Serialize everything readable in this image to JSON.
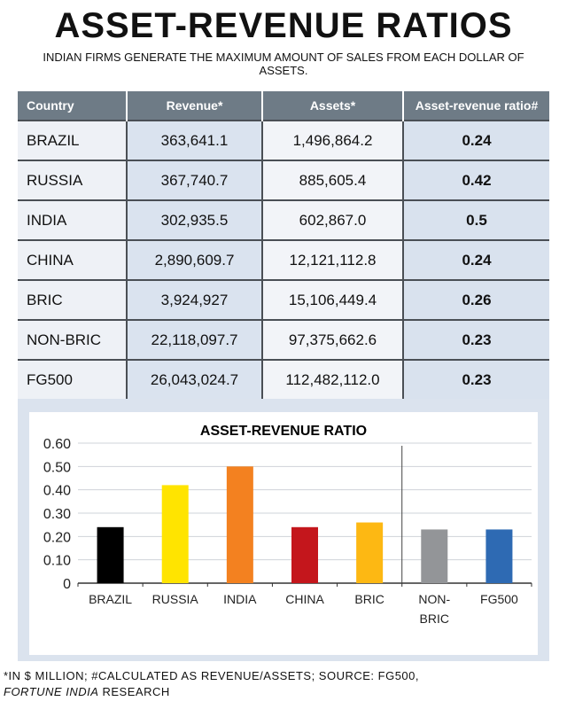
{
  "title": "ASSET-REVENUE RATIOS",
  "subtitle": "INDIAN FIRMS GENERATE THE MAXIMUM AMOUNT OF SALES FROM EACH DOLLAR OF ASSETS.",
  "table": {
    "headers": [
      "Country",
      "Revenue*",
      "Assets*",
      "Asset-revenue ratio#"
    ],
    "rows": [
      [
        "BRAZIL",
        "363,641.1",
        "1,496,864.2",
        "0.24"
      ],
      [
        "RUSSIA",
        "367,740.7",
        "885,605.4",
        "0.42"
      ],
      [
        "INDIA",
        "302,935.5",
        "602,867.0",
        "0.5"
      ],
      [
        "CHINA",
        "2,890,609.7",
        "12,121,112.8",
        "0.24"
      ],
      [
        "BRIC",
        "3,924,927",
        "15,106,449.4",
        "0.26"
      ],
      [
        "NON-BRIC",
        "22,118,097.7",
        "97,375,662.6",
        "0.23"
      ],
      [
        "FG500",
        "26,043,024.7",
        "112,482,112.0",
        "0.23"
      ]
    ]
  },
  "chart_data": {
    "type": "bar",
    "title": "ASSET-REVENUE RATIO",
    "categories": [
      "BRAZIL",
      "RUSSIA",
      "INDIA",
      "CHINA",
      "BRIC",
      "NON-BRIC",
      "FG500"
    ],
    "category_lines": [
      [
        "BRAZIL"
      ],
      [
        "RUSSIA"
      ],
      [
        "INDIA"
      ],
      [
        "CHINA"
      ],
      [
        "BRIC"
      ],
      [
        "NON-",
        "BRIC"
      ],
      [
        "FG500"
      ]
    ],
    "values": [
      0.24,
      0.42,
      0.5,
      0.24,
      0.26,
      0.23,
      0.23
    ],
    "colors": [
      "#000000",
      "#ffe400",
      "#f38120",
      "#c4161c",
      "#fdb813",
      "#939598",
      "#2e6ab3"
    ],
    "ylim": [
      0,
      0.6
    ],
    "yticks": [
      0,
      0.1,
      0.2,
      0.3,
      0.4,
      0.5,
      0.6
    ],
    "ytick_labels": [
      "0",
      "0.10",
      "0.20",
      "0.30",
      "0.40",
      "0.50",
      "0.60"
    ],
    "separator_after_index": 4,
    "grid": true,
    "xlabel": "",
    "ylabel": ""
  },
  "footnote": {
    "line1": "*IN $ MILLION; #CALCULATED AS REVENUE/ASSETS; SOURCE: FG500,",
    "line2_italic": "FORTUNE INDIA",
    "line2_rest": " RESEARCH"
  }
}
